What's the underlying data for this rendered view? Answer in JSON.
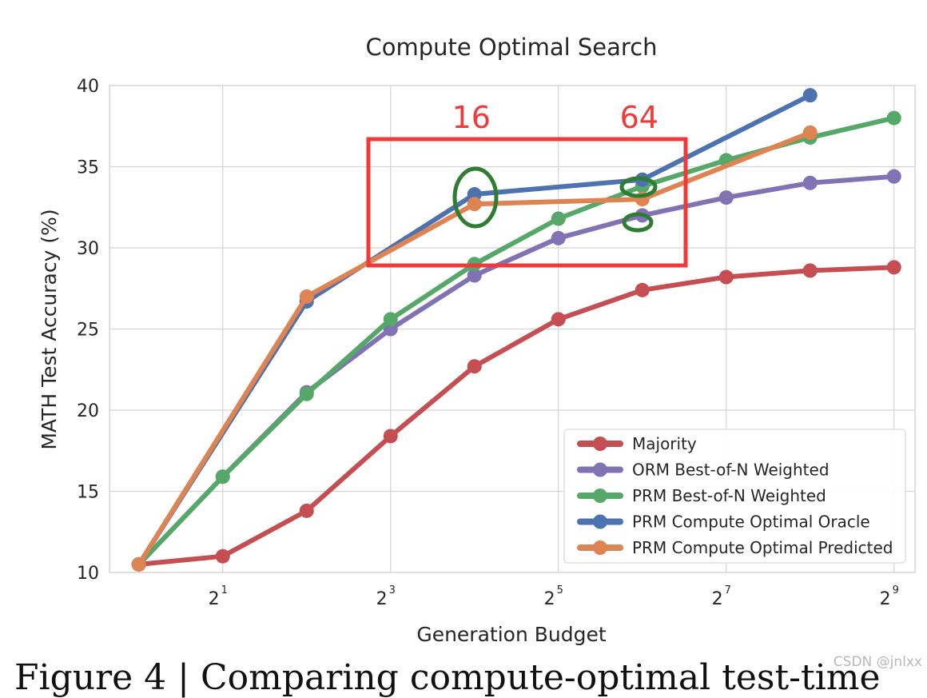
{
  "chart_data": {
    "type": "line",
    "title": "Compute Optimal Search",
    "xlabel": "Generation Budget",
    "ylabel": "MATH Test Accuracy (%)",
    "x_scale": "log2",
    "x": [
      1,
      2,
      4,
      8,
      16,
      32,
      64,
      128,
      256,
      512
    ],
    "xlim": [
      1,
      512
    ],
    "ylim": [
      10,
      40
    ],
    "xticks": [
      {
        "base": "2",
        "exp": "1",
        "value": 2
      },
      {
        "base": "2",
        "exp": "3",
        "value": 8
      },
      {
        "base": "2",
        "exp": "5",
        "value": 32
      },
      {
        "base": "2",
        "exp": "7",
        "value": 128
      },
      {
        "base": "2",
        "exp": "9",
        "value": 512
      }
    ],
    "yticks": [
      "10",
      "15",
      "20",
      "25",
      "30",
      "35",
      "40"
    ],
    "grid": true,
    "legend_position": "bottom-right",
    "series": [
      {
        "name": "Majority",
        "color": "#c44e52",
        "stroke": 6,
        "x": [
          1,
          2,
          4,
          8,
          16,
          32,
          64,
          128,
          256,
          512
        ],
        "values": [
          10.5,
          11.0,
          13.8,
          18.4,
          22.7,
          25.6,
          27.4,
          28.2,
          28.6,
          28.8
        ]
      },
      {
        "name": "ORM Best-of-N Weighted",
        "color": "#8172b3",
        "stroke": 6,
        "x": [
          1,
          2,
          4,
          8,
          16,
          32,
          64,
          128,
          256,
          512
        ],
        "values": [
          10.5,
          15.9,
          21.1,
          25.0,
          28.3,
          30.6,
          32.0,
          33.1,
          34.0,
          34.4
        ]
      },
      {
        "name": "PRM Best-of-N Weighted",
        "color": "#55a868",
        "stroke": 6,
        "x": [
          1,
          2,
          4,
          8,
          16,
          32,
          64,
          128,
          256,
          512
        ],
        "values": [
          10.5,
          15.9,
          21.0,
          25.6,
          29.0,
          31.8,
          33.8,
          35.4,
          36.8,
          38.0
        ]
      },
      {
        "name": "PRM Compute Optimal Oracle",
        "color": "#4c72b0",
        "stroke": 6,
        "x": [
          1,
          4,
          16,
          64,
          256
        ],
        "values": [
          10.5,
          26.7,
          33.3,
          34.2,
          39.4
        ]
      },
      {
        "name": "PRM Compute Optimal Predicted",
        "color": "#dd8452",
        "stroke": 6,
        "x": [
          1,
          4,
          16,
          64,
          256
        ],
        "values": [
          10.5,
          27.0,
          32.7,
          33.0,
          37.1
        ]
      }
    ],
    "annotations": {
      "box_color": "#f03a3a",
      "ellipse_color": "#2e7d32",
      "labels": [
        {
          "text": "16",
          "x": 16
        },
        {
          "text": "64",
          "x": 64
        }
      ]
    }
  },
  "footer_text": "Figure 4 | Comparing compute-optimal test-time",
  "watermark": "CSDN @jnlxx"
}
